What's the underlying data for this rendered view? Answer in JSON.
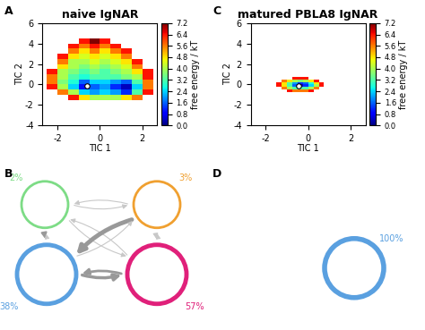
{
  "chart_data": [
    {
      "panel": "A",
      "type": "heatmap",
      "title": "naive IgNAR",
      "x_label": "TIC 1",
      "y_label": "TIC 2",
      "xlim": [
        -2.7,
        2.7
      ],
      "ylim": [
        -4,
        6
      ],
      "xticks": [
        -2,
        0,
        2
      ],
      "yticks": [
        -4,
        -2,
        0,
        2,
        4,
        6
      ],
      "x_edges": [
        -2.5,
        -2.0,
        -1.5,
        -1.0,
        -0.5,
        0.0,
        0.5,
        1.0,
        1.5,
        2.0,
        2.5
      ],
      "y_edges": [
        -1.5,
        -1.0,
        -0.5,
        0.0,
        0.5,
        1.0,
        1.5,
        2.0,
        2.5,
        3.0,
        3.5,
        4.0,
        4.5
      ],
      "cells": [
        [
          null,
          null,
          6.4,
          4.8,
          4.0,
          4.0,
          4.0,
          4.8,
          5.6,
          null
        ],
        [
          null,
          5.6,
          4.0,
          2.4,
          2.0,
          2.4,
          2.0,
          1.2,
          3.2,
          6.4
        ],
        [
          6.4,
          4.0,
          2.4,
          1.0,
          1.6,
          2.0,
          1.2,
          0.4,
          2.4,
          5.6
        ],
        [
          5.6,
          3.6,
          2.8,
          1.6,
          2.4,
          2.4,
          2.0,
          1.6,
          3.2,
          5.6
        ],
        [
          5.6,
          4.0,
          3.2,
          2.8,
          3.2,
          3.2,
          3.2,
          3.6,
          4.0,
          6.4
        ],
        [
          6.4,
          4.0,
          3.6,
          3.2,
          3.6,
          3.2,
          3.6,
          4.0,
          4.8,
          6.4
        ],
        [
          null,
          4.8,
          4.0,
          3.6,
          4.0,
          3.6,
          4.0,
          4.4,
          5.6,
          null
        ],
        [
          null,
          5.6,
          4.0,
          4.0,
          4.4,
          4.0,
          4.4,
          4.8,
          6.4,
          null
        ],
        [
          null,
          6.4,
          4.8,
          4.4,
          4.8,
          4.4,
          4.8,
          5.6,
          null,
          null
        ],
        [
          null,
          null,
          5.6,
          4.8,
          5.6,
          4.8,
          5.6,
          6.4,
          null,
          null
        ],
        [
          null,
          null,
          6.4,
          5.6,
          6.4,
          5.6,
          6.4,
          null,
          null,
          null
        ],
        [
          null,
          null,
          null,
          6.4,
          7.2,
          6.4,
          null,
          null,
          null,
          null
        ]
      ],
      "colorbar": {
        "label": "free energy / kT",
        "range": [
          0.0,
          7.2
        ],
        "ticks": [
          0.0,
          0.8,
          1.6,
          2.4,
          3.2,
          4.0,
          4.8,
          5.6,
          6.4,
          7.2
        ]
      },
      "marker_point": {
        "x": -0.6,
        "y": -0.1
      }
    },
    {
      "panel": "C",
      "type": "heatmap",
      "title": "matured PBLA8 IgNAR",
      "x_label": "TIC 1",
      "y_label": "TIC 2",
      "xlim": [
        -2.7,
        2.7
      ],
      "ylim": [
        -4,
        6
      ],
      "xticks": [
        -2,
        0,
        2
      ],
      "yticks": [
        -4,
        -2,
        0,
        2,
        4,
        6
      ],
      "x_edges": [
        -1.5,
        -1.25,
        -1.0,
        -0.75,
        -0.5,
        -0.25,
        0.0,
        0.25,
        0.5,
        0.75
      ],
      "y_edges": [
        -0.75,
        -0.5,
        -0.25,
        0.0,
        0.25,
        0.5,
        0.75
      ],
      "cells": [
        [
          null,
          null,
          6.4,
          5.6,
          5.6,
          5.6,
          6.4,
          null,
          null
        ],
        [
          null,
          5.6,
          4.0,
          3.2,
          3.2,
          3.2,
          4.0,
          5.6,
          null
        ],
        [
          6.4,
          4.8,
          3.2,
          1.6,
          0.4,
          1.2,
          2.4,
          4.0,
          6.4
        ],
        [
          6.4,
          4.8,
          3.2,
          2.0,
          1.2,
          1.6,
          2.8,
          4.8,
          6.4
        ],
        [
          null,
          5.6,
          4.8,
          4.0,
          3.6,
          4.0,
          4.8,
          6.4,
          null
        ],
        [
          null,
          null,
          null,
          6.4,
          6.4,
          6.4,
          null,
          null,
          null
        ]
      ],
      "colorbar": {
        "label": "free energy / kT",
        "range": [
          0.0,
          7.2
        ],
        "ticks": [
          0.0,
          0.8,
          1.6,
          2.4,
          3.2,
          4.0,
          4.8,
          5.6,
          6.4,
          7.2
        ]
      },
      "marker_point": {
        "x": -0.45,
        "y": -0.1
      }
    }
  ],
  "diagrams": [
    {
      "panel": "B",
      "nodes": [
        {
          "label": "2%",
          "color": "#7ddc86"
        },
        {
          "label": "3%",
          "color": "#f0a030"
        },
        {
          "label": "38%",
          "color": "#5aa0e0"
        },
        {
          "label": "57%",
          "color": "#e0207a"
        }
      ]
    },
    {
      "panel": "D",
      "nodes": [
        {
          "label": "100%",
          "color": "#5aa0e0"
        }
      ]
    }
  ]
}
